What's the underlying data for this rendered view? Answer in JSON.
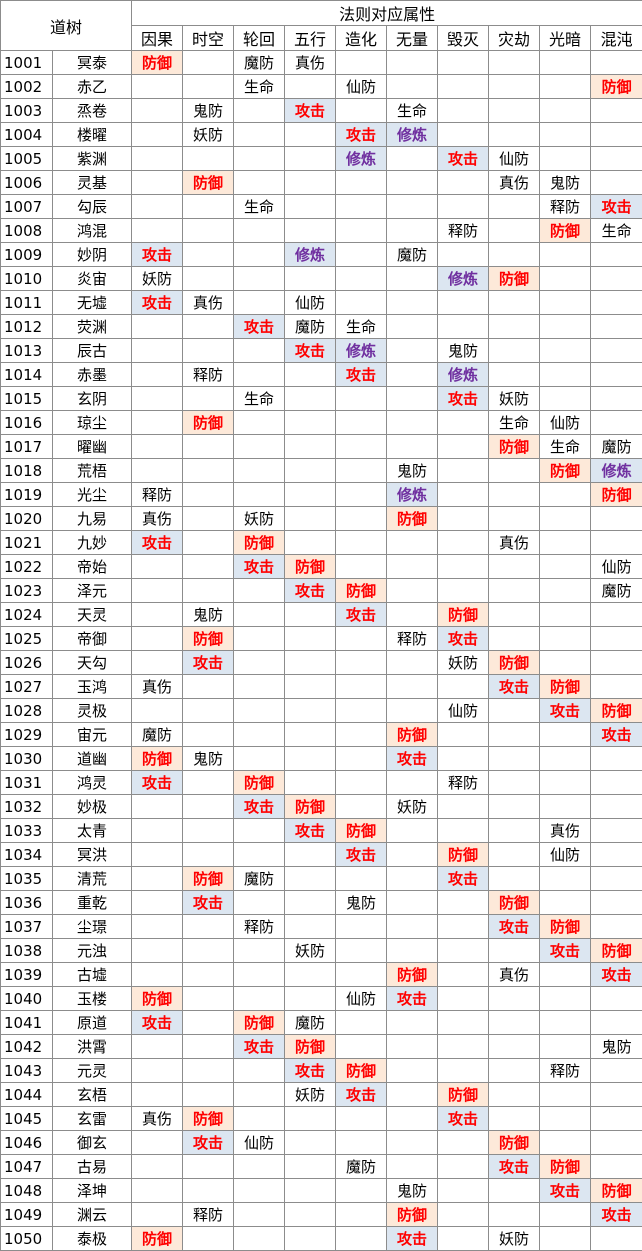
{
  "header": {
    "daoshu": "道树",
    "group": "法则对应属性"
  },
  "columns": [
    "因果",
    "时空",
    "轮回",
    "五行",
    "造化",
    "无量",
    "毁灭",
    "灾劫",
    "光暗",
    "混沌"
  ],
  "styles": {
    "攻击": "atk",
    "防御": "def",
    "修炼": "cult"
  },
  "colors": {
    "attack_bg": "#dce6f1",
    "defense_bg": "#fde9d9",
    "highlight_text": "#ff0000",
    "cultivate_text": "#7030a0"
  },
  "rows": [
    {
      "id": "1001",
      "name": "冥泰",
      "cells": [
        "防御",
        "",
        "魔防",
        "真伤",
        "",
        "",
        "",
        "",
        "",
        ""
      ]
    },
    {
      "id": "1002",
      "name": "赤乙",
      "cells": [
        "",
        "",
        "生命",
        "",
        "仙防",
        "",
        "",
        "",
        "",
        "防御"
      ]
    },
    {
      "id": "1003",
      "name": "烝卷",
      "cells": [
        "",
        "鬼防",
        "",
        "攻击",
        "",
        "生命",
        "",
        "",
        "",
        ""
      ]
    },
    {
      "id": "1004",
      "name": "楼曜",
      "cells": [
        "",
        "妖防",
        "",
        "",
        "攻击",
        "修炼",
        "",
        "",
        "",
        ""
      ]
    },
    {
      "id": "1005",
      "name": "紫渊",
      "cells": [
        "",
        "",
        "",
        "",
        "修炼",
        "",
        "攻击",
        "仙防",
        "",
        ""
      ]
    },
    {
      "id": "1006",
      "name": "灵基",
      "cells": [
        "",
        "防御",
        "",
        "",
        "",
        "",
        "",
        "真伤",
        "鬼防",
        ""
      ]
    },
    {
      "id": "1007",
      "name": "勾辰",
      "cells": [
        "",
        "",
        "生命",
        "",
        "",
        "",
        "",
        "",
        "释防",
        "攻击"
      ]
    },
    {
      "id": "1008",
      "name": "鸿混",
      "cells": [
        "",
        "",
        "",
        "",
        "",
        "",
        "释防",
        "",
        "防御",
        "生命"
      ]
    },
    {
      "id": "1009",
      "name": "妙阴",
      "cells": [
        "攻击",
        "",
        "",
        "修炼",
        "",
        "魔防",
        "",
        "",
        "",
        ""
      ]
    },
    {
      "id": "1010",
      "name": "炎宙",
      "cells": [
        "妖防",
        "",
        "",
        "",
        "",
        "",
        "修炼",
        "防御",
        "",
        ""
      ]
    },
    {
      "id": "1011",
      "name": "无墟",
      "cells": [
        "攻击",
        "真伤",
        "",
        "仙防",
        "",
        "",
        "",
        "",
        "",
        ""
      ]
    },
    {
      "id": "1012",
      "name": "荧渊",
      "cells": [
        "",
        "",
        "攻击",
        "魔防",
        "生命",
        "",
        "",
        "",
        "",
        ""
      ]
    },
    {
      "id": "1013",
      "name": "辰古",
      "cells": [
        "",
        "",
        "",
        "攻击",
        "修炼",
        "",
        "鬼防",
        "",
        "",
        ""
      ]
    },
    {
      "id": "1014",
      "name": "赤墨",
      "cells": [
        "",
        "释防",
        "",
        "",
        "攻击",
        "",
        "修炼",
        "",
        "",
        ""
      ]
    },
    {
      "id": "1015",
      "name": "玄阴",
      "cells": [
        "",
        "",
        "生命",
        "",
        "",
        "",
        "攻击",
        "妖防",
        "",
        ""
      ]
    },
    {
      "id": "1016",
      "name": "琼尘",
      "cells": [
        "",
        "防御",
        "",
        "",
        "",
        "",
        "",
        "生命",
        "仙防",
        ""
      ]
    },
    {
      "id": "1017",
      "name": "曜幽",
      "cells": [
        "",
        "",
        "",
        "",
        "",
        "",
        "",
        "防御",
        "生命",
        "魔防"
      ]
    },
    {
      "id": "1018",
      "name": "荒梧",
      "cells": [
        "",
        "",
        "",
        "",
        "",
        "鬼防",
        "",
        "",
        "防御",
        "修炼"
      ]
    },
    {
      "id": "1019",
      "name": "光尘",
      "cells": [
        "释防",
        "",
        "",
        "",
        "",
        "修炼",
        "",
        "",
        "",
        "防御"
      ]
    },
    {
      "id": "1020",
      "name": "九易",
      "cells": [
        "真伤",
        "",
        "妖防",
        "",
        "",
        "防御",
        "",
        "",
        "",
        ""
      ]
    },
    {
      "id": "1021",
      "name": "九妙",
      "cells": [
        "攻击",
        "",
        "防御",
        "",
        "",
        "",
        "",
        "真伤",
        "",
        ""
      ]
    },
    {
      "id": "1022",
      "name": "帝始",
      "cells": [
        "",
        "",
        "攻击",
        "防御",
        "",
        "",
        "",
        "",
        "",
        "仙防"
      ]
    },
    {
      "id": "1023",
      "name": "泽元",
      "cells": [
        "",
        "",
        "",
        "攻击",
        "防御",
        "",
        "",
        "",
        "",
        "魔防"
      ]
    },
    {
      "id": "1024",
      "name": "天灵",
      "cells": [
        "",
        "鬼防",
        "",
        "",
        "攻击",
        "",
        "防御",
        "",
        "",
        ""
      ]
    },
    {
      "id": "1025",
      "name": "帝御",
      "cells": [
        "",
        "防御",
        "",
        "",
        "",
        "释防",
        "攻击",
        "",
        "",
        ""
      ]
    },
    {
      "id": "1026",
      "name": "天勾",
      "cells": [
        "",
        "攻击",
        "",
        "",
        "",
        "",
        "妖防",
        "防御",
        "",
        ""
      ]
    },
    {
      "id": "1027",
      "name": "玉鸿",
      "cells": [
        "真伤",
        "",
        "",
        "",
        "",
        "",
        "",
        "攻击",
        "防御",
        ""
      ]
    },
    {
      "id": "1028",
      "name": "灵极",
      "cells": [
        "",
        "",
        "",
        "",
        "",
        "",
        "仙防",
        "",
        "攻击",
        "防御"
      ]
    },
    {
      "id": "1029",
      "name": "宙元",
      "cells": [
        "魔防",
        "",
        "",
        "",
        "",
        "防御",
        "",
        "",
        "",
        "攻击"
      ]
    },
    {
      "id": "1030",
      "name": "道幽",
      "cells": [
        "防御",
        "鬼防",
        "",
        "",
        "",
        "攻击",
        "",
        "",
        "",
        ""
      ]
    },
    {
      "id": "1031",
      "name": "鸿灵",
      "cells": [
        "攻击",
        "",
        "防御",
        "",
        "",
        "",
        "释防",
        "",
        "",
        ""
      ]
    },
    {
      "id": "1032",
      "name": "妙极",
      "cells": [
        "",
        "",
        "攻击",
        "防御",
        "",
        "妖防",
        "",
        "",
        "",
        ""
      ]
    },
    {
      "id": "1033",
      "name": "太青",
      "cells": [
        "",
        "",
        "",
        "攻击",
        "防御",
        "",
        "",
        "",
        "真伤",
        ""
      ]
    },
    {
      "id": "1034",
      "name": "冥洪",
      "cells": [
        "",
        "",
        "",
        "",
        "攻击",
        "",
        "防御",
        "",
        "仙防",
        ""
      ]
    },
    {
      "id": "1035",
      "name": "清荒",
      "cells": [
        "",
        "防御",
        "魔防",
        "",
        "",
        "",
        "攻击",
        "",
        "",
        ""
      ]
    },
    {
      "id": "1036",
      "name": "重乾",
      "cells": [
        "",
        "攻击",
        "",
        "",
        "鬼防",
        "",
        "",
        "防御",
        "",
        ""
      ]
    },
    {
      "id": "1037",
      "name": "尘璟",
      "cells": [
        "",
        "",
        "释防",
        "",
        "",
        "",
        "",
        "攻击",
        "防御",
        ""
      ]
    },
    {
      "id": "1038",
      "name": "元浊",
      "cells": [
        "",
        "",
        "",
        "妖防",
        "",
        "",
        "",
        "",
        "攻击",
        "防御"
      ]
    },
    {
      "id": "1039",
      "name": "古墟",
      "cells": [
        "",
        "",
        "",
        "",
        "",
        "防御",
        "",
        "真伤",
        "",
        "攻击"
      ]
    },
    {
      "id": "1040",
      "name": "玉楼",
      "cells": [
        "防御",
        "",
        "",
        "",
        "仙防",
        "攻击",
        "",
        "",
        "",
        ""
      ]
    },
    {
      "id": "1041",
      "name": "原道",
      "cells": [
        "攻击",
        "",
        "防御",
        "魔防",
        "",
        "",
        "",
        "",
        "",
        ""
      ]
    },
    {
      "id": "1042",
      "name": "洪霄",
      "cells": [
        "",
        "",
        "攻击",
        "防御",
        "",
        "",
        "",
        "",
        "",
        "鬼防"
      ]
    },
    {
      "id": "1043",
      "name": "元灵",
      "cells": [
        "",
        "",
        "",
        "攻击",
        "防御",
        "",
        "",
        "",
        "释防",
        ""
      ]
    },
    {
      "id": "1044",
      "name": "玄梧",
      "cells": [
        "",
        "",
        "",
        "妖防",
        "攻击",
        "",
        "防御",
        "",
        "",
        ""
      ]
    },
    {
      "id": "1045",
      "name": "玄雷",
      "cells": [
        "真伤",
        "防御",
        "",
        "",
        "",
        "",
        "攻击",
        "",
        "",
        ""
      ]
    },
    {
      "id": "1046",
      "name": "御玄",
      "cells": [
        "",
        "攻击",
        "仙防",
        "",
        "",
        "",
        "",
        "防御",
        "",
        ""
      ]
    },
    {
      "id": "1047",
      "name": "古易",
      "cells": [
        "",
        "",
        "",
        "",
        "魔防",
        "",
        "",
        "攻击",
        "防御",
        ""
      ]
    },
    {
      "id": "1048",
      "name": "泽坤",
      "cells": [
        "",
        "",
        "",
        "",
        "",
        "鬼防",
        "",
        "",
        "攻击",
        "防御"
      ]
    },
    {
      "id": "1049",
      "name": "渊云",
      "cells": [
        "",
        "释防",
        "",
        "",
        "",
        "防御",
        "",
        "",
        "",
        "攻击"
      ]
    },
    {
      "id": "1050",
      "name": "泰极",
      "cells": [
        "防御",
        "",
        "",
        "",
        "",
        "攻击",
        "",
        "妖防",
        "",
        ""
      ]
    }
  ]
}
